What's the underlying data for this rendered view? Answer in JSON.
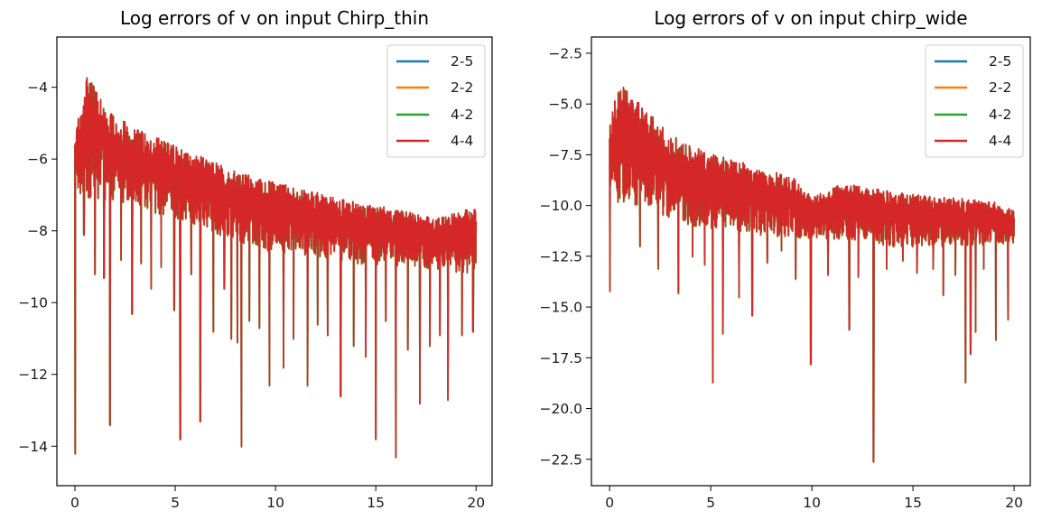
{
  "chart_data": [
    {
      "type": "line",
      "title": "Log errors of v on input Chirp_thin",
      "xlabel": "",
      "ylabel": "",
      "xlim": [
        -0.9,
        20.8
      ],
      "ylim": [
        -15.1,
        -2.6
      ],
      "xticks": [
        0,
        5,
        10,
        15,
        20
      ],
      "yticks": [
        -14,
        -12,
        -10,
        -8,
        -6,
        -4
      ],
      "xtick_labels": [
        "0",
        "5",
        "10",
        "15",
        "20"
      ],
      "ytick_labels": [
        "−14",
        "−12",
        "−10",
        "−8",
        "−6",
        "−4"
      ],
      "legend_position": "top-right",
      "grid": false,
      "series": [
        {
          "name": "2-5",
          "color": "#1f77b4"
        },
        {
          "name": "2-2",
          "color": "#ff7f0e"
        },
        {
          "name": "4-2",
          "color": "#2ca02c"
        },
        {
          "name": "4-4",
          "color": "#d62728"
        }
      ],
      "envelope_top": [
        [
          0,
          -4.9
        ],
        [
          0.3,
          -4.1
        ],
        [
          0.6,
          -3.0
        ],
        [
          1.2,
          -3.7
        ],
        [
          2,
          -4.4
        ],
        [
          4,
          -5.0
        ],
        [
          6,
          -5.5
        ],
        [
          8,
          -6.0
        ],
        [
          10,
          -6.3
        ],
        [
          12,
          -6.6
        ],
        [
          14,
          -6.9
        ],
        [
          16,
          -7.1
        ],
        [
          18,
          -7.4
        ],
        [
          20,
          -7.0
        ]
      ],
      "envelope_bottom": [
        [
          0,
          -7.0
        ],
        [
          2,
          -7.2
        ],
        [
          4,
          -7.5
        ],
        [
          6,
          -7.8
        ],
        [
          8,
          -8.3
        ],
        [
          10,
          -8.6
        ],
        [
          12,
          -8.7
        ],
        [
          14,
          -8.9
        ],
        [
          16,
          -9.0
        ],
        [
          18,
          -9.1
        ],
        [
          20,
          -9.2
        ]
      ],
      "dips": [
        {
          "x": 0.02,
          "y": -14.2
        },
        {
          "x": 0.45,
          "y": -8.1
        },
        {
          "x": 1.0,
          "y": -9.2
        },
        {
          "x": 1.45,
          "y": -9.3
        },
        {
          "x": 1.75,
          "y": -13.4
        },
        {
          "x": 2.3,
          "y": -8.8
        },
        {
          "x": 2.85,
          "y": -10.3
        },
        {
          "x": 3.3,
          "y": -8.9
        },
        {
          "x": 3.8,
          "y": -9.6
        },
        {
          "x": 4.3,
          "y": -9.0
        },
        {
          "x": 4.95,
          "y": -10.2
        },
        {
          "x": 5.25,
          "y": -13.8
        },
        {
          "x": 5.8,
          "y": -9.2
        },
        {
          "x": 6.25,
          "y": -13.3
        },
        {
          "x": 6.9,
          "y": -10.8
        },
        {
          "x": 7.45,
          "y": -9.6
        },
        {
          "x": 7.8,
          "y": -11.0
        },
        {
          "x": 8.1,
          "y": -11.1
        },
        {
          "x": 8.3,
          "y": -14.0
        },
        {
          "x": 8.7,
          "y": -10.5
        },
        {
          "x": 9.2,
          "y": -10.7
        },
        {
          "x": 9.7,
          "y": -12.3
        },
        {
          "x": 10.4,
          "y": -11.8
        },
        {
          "x": 10.9,
          "y": -11.0
        },
        {
          "x": 11.6,
          "y": -12.3
        },
        {
          "x": 12.1,
          "y": -10.6
        },
        {
          "x": 12.6,
          "y": -10.9
        },
        {
          "x": 13.25,
          "y": -12.6
        },
        {
          "x": 13.9,
          "y": -11.2
        },
        {
          "x": 14.5,
          "y": -11.5
        },
        {
          "x": 15.0,
          "y": -13.8
        },
        {
          "x": 15.5,
          "y": -10.5
        },
        {
          "x": 16.0,
          "y": -14.3
        },
        {
          "x": 16.6,
          "y": -11.3
        },
        {
          "x": 17.2,
          "y": -12.8
        },
        {
          "x": 17.7,
          "y": -11.2
        },
        {
          "x": 18.2,
          "y": -10.9
        },
        {
          "x": 18.6,
          "y": -12.7
        },
        {
          "x": 19.3,
          "y": -10.9
        },
        {
          "x": 19.85,
          "y": -10.8
        }
      ]
    },
    {
      "type": "line",
      "title": "Log errors of v on input chirp_wide",
      "xlabel": "",
      "ylabel": "",
      "xlim": [
        -0.9,
        20.8
      ],
      "ylim": [
        -23.8,
        -1.7
      ],
      "xticks": [
        0,
        5,
        10,
        15,
        20
      ],
      "yticks": [
        -22.5,
        -20.0,
        -17.5,
        -15.0,
        -12.5,
        -10.0,
        -7.5,
        -5.0,
        -2.5
      ],
      "xtick_labels": [
        "0",
        "5",
        "10",
        "15",
        "20"
      ],
      "ytick_labels": [
        "−22.5",
        "−20.0",
        "−17.5",
        "−15.0",
        "−12.5",
        "−10.0",
        "−7.5",
        "−5.0",
        "−2.5"
      ],
      "legend_position": "top-right",
      "grid": false,
      "series": [
        {
          "name": "2-5",
          "color": "#1f77b4"
        },
        {
          "name": "2-2",
          "color": "#ff7f0e"
        },
        {
          "name": "4-2",
          "color": "#2ca02c"
        },
        {
          "name": "4-4",
          "color": "#d62728"
        }
      ],
      "envelope_top": [
        [
          0,
          -5.5
        ],
        [
          0.3,
          -3.6
        ],
        [
          0.8,
          -2.8
        ],
        [
          1.5,
          -4.0
        ],
        [
          3,
          -5.8
        ],
        [
          5,
          -6.8
        ],
        [
          7,
          -7.4
        ],
        [
          9,
          -8.0
        ],
        [
          10,
          -9.2
        ],
        [
          11.5,
          -8.4
        ],
        [
          13,
          -8.6
        ],
        [
          15,
          -9.0
        ],
        [
          17,
          -9.2
        ],
        [
          19,
          -9.4
        ],
        [
          20,
          -10.0
        ]
      ],
      "envelope_bottom": [
        [
          0,
          -9.8
        ],
        [
          2,
          -10.2
        ],
        [
          4,
          -11.0
        ],
        [
          6,
          -11.2
        ],
        [
          8,
          -11.5
        ],
        [
          10,
          -11.6
        ],
        [
          12,
          -11.8
        ],
        [
          14,
          -12.0
        ],
        [
          16,
          -12.0
        ],
        [
          18,
          -12.0
        ],
        [
          20,
          -11.8
        ]
      ],
      "dips": [
        {
          "x": 0.02,
          "y": -14.2
        },
        {
          "x": 0.5,
          "y": -9.6
        },
        {
          "x": 1.5,
          "y": -12.0
        },
        {
          "x": 2.4,
          "y": -13.1
        },
        {
          "x": 3.4,
          "y": -14.3
        },
        {
          "x": 4.1,
          "y": -12.5
        },
        {
          "x": 4.7,
          "y": -12.9
        },
        {
          "x": 5.1,
          "y": -18.7
        },
        {
          "x": 5.6,
          "y": -16.3
        },
        {
          "x": 6.4,
          "y": -14.5
        },
        {
          "x": 7.05,
          "y": -15.4
        },
        {
          "x": 7.8,
          "y": -12.8
        },
        {
          "x": 8.5,
          "y": -12.2
        },
        {
          "x": 9.2,
          "y": -13.6
        },
        {
          "x": 9.95,
          "y": -17.8
        },
        {
          "x": 10.8,
          "y": -13.4
        },
        {
          "x": 11.85,
          "y": -16.1
        },
        {
          "x": 12.3,
          "y": -13.5
        },
        {
          "x": 13.05,
          "y": -22.6
        },
        {
          "x": 13.7,
          "y": -13.1
        },
        {
          "x": 14.5,
          "y": -12.7
        },
        {
          "x": 15.2,
          "y": -13.3
        },
        {
          "x": 16.0,
          "y": -13.1
        },
        {
          "x": 16.5,
          "y": -14.4
        },
        {
          "x": 17.1,
          "y": -13.4
        },
        {
          "x": 17.6,
          "y": -18.7
        },
        {
          "x": 17.85,
          "y": -17.3
        },
        {
          "x": 18.1,
          "y": -16.2
        },
        {
          "x": 18.5,
          "y": -13.1
        },
        {
          "x": 19.1,
          "y": -16.6
        },
        {
          "x": 19.7,
          "y": -15.6
        }
      ]
    }
  ]
}
